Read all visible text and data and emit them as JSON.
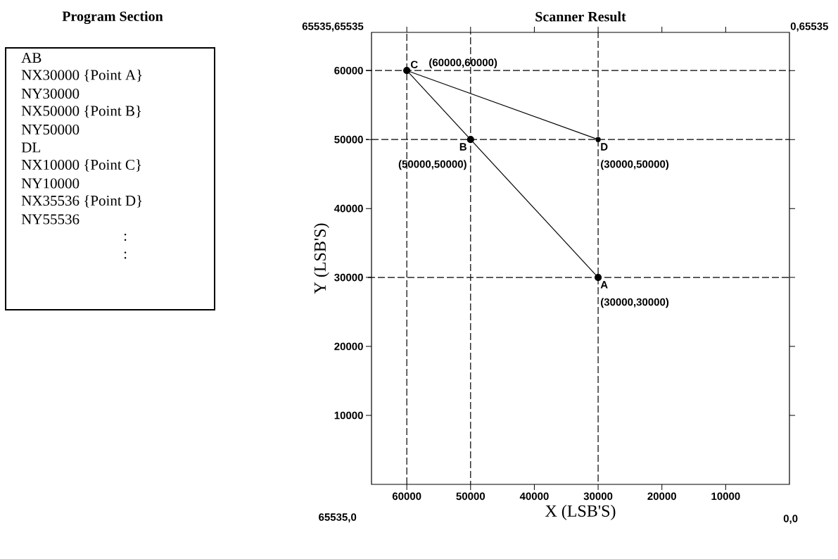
{
  "chart_data": [
    {
      "type": "other",
      "title": "Program Section",
      "annotations": [
        "AB",
        "NX30000 {Point A}",
        "NY30000",
        "NX50000 {Point B}",
        "NY50000",
        "DL",
        "NX10000 {Point C}",
        "NY10000",
        "NX35536 {Point D}",
        "NY55536",
        ":",
        ":"
      ]
    },
    {
      "type": "line",
      "title": "Scanner Result",
      "xlabel": "X (LSB'S)",
      "ylabel": "Y (LSB'S)",
      "xlim": [
        65535,
        0
      ],
      "ylim": [
        0,
        65535
      ],
      "xticks": [
        60000,
        50000,
        40000,
        30000,
        20000,
        10000
      ],
      "yticks": [
        10000,
        20000,
        30000,
        40000,
        50000,
        60000
      ],
      "marker": "circle",
      "line_style": "solid",
      "series": [
        {
          "color": "#000000",
          "x": [
            30000,
            50000,
            60000
          ],
          "values": [
            30000,
            50000,
            60000
          ]
        },
        {
          "color": "#000000",
          "x": [
            60000,
            30000
          ],
          "values": [
            60000,
            50000
          ]
        }
      ],
      "ref_lines": [
        {
          "axis": "x",
          "value": 60000,
          "line_style": "dashed",
          "color": "#000000"
        },
        {
          "axis": "x",
          "value": 50000,
          "line_style": "dashed",
          "color": "#000000"
        },
        {
          "axis": "x",
          "value": 30000,
          "line_style": "dashed",
          "color": "#000000"
        },
        {
          "axis": "y",
          "value": 60000,
          "line_style": "dashed",
          "color": "#000000"
        },
        {
          "axis": "y",
          "value": 50000,
          "line_style": "dashed",
          "color": "#000000"
        },
        {
          "axis": "y",
          "value": 30000,
          "line_style": "dashed",
          "color": "#000000"
        }
      ],
      "annotations": [
        "65535,65535",
        "0,65535",
        "65535,0",
        "0,0",
        {
          "text": "C",
          "x": 60000,
          "y": 60000
        },
        {
          "text": "(60000,60000)",
          "x": 60000,
          "y": 60000
        },
        {
          "text": "B",
          "x": 50000,
          "y": 50000
        },
        {
          "text": "(50000,50000)",
          "x": 50000,
          "y": 50000
        },
        {
          "text": "D",
          "x": 30000,
          "y": 50000
        },
        {
          "text": "(30000,50000)",
          "x": 30000,
          "y": 50000
        },
        {
          "text": "A",
          "x": 30000,
          "y": 30000
        },
        {
          "text": "(30000,30000)",
          "x": 30000,
          "y": 30000
        }
      ]
    }
  ]
}
